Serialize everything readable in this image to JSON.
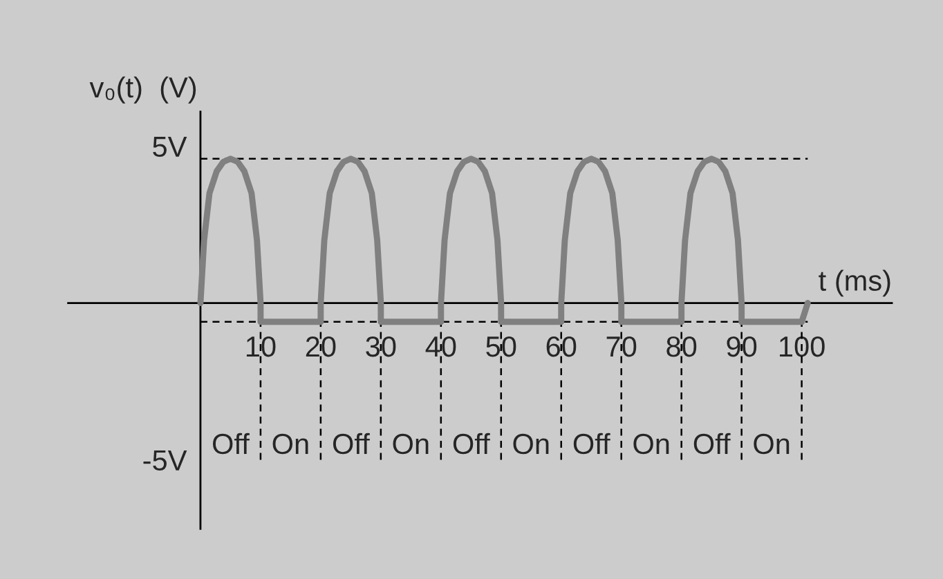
{
  "chart_data": {
    "type": "line",
    "xlabel": "t (ms)",
    "ylabel": "v₀(t)  (V)",
    "x": [
      0,
      0.6,
      1.5,
      2.7,
      3.8,
      5,
      6.2,
      7.3,
      8.5,
      9.4,
      10,
      10,
      20,
      20,
      20.6,
      21.5,
      22.7,
      23.8,
      25,
      26.2,
      27.3,
      28.5,
      29.4,
      30,
      30,
      40,
      40,
      40.6,
      41.5,
      42.7,
      43.8,
      45,
      46.2,
      47.3,
      48.5,
      49.4,
      50,
      50,
      60,
      60,
      60.6,
      61.5,
      62.7,
      63.8,
      65,
      66.2,
      67.3,
      68.5,
      69.4,
      70,
      70,
      80,
      80,
      80.6,
      81.5,
      82.7,
      83.8,
      85,
      86.2,
      87.3,
      88.5,
      89.4,
      90,
      90,
      100,
      101
    ],
    "series": [
      {
        "color": "#808080",
        "values": [
          0,
          2.0,
          3.5,
          4.2,
          4.5,
          4.6,
          4.5,
          4.2,
          3.5,
          2.0,
          0,
          -0.6,
          -0.6,
          0,
          2.0,
          3.5,
          4.2,
          4.5,
          4.6,
          4.5,
          4.2,
          3.5,
          2.0,
          0,
          -0.6,
          -0.6,
          0,
          2.0,
          3.5,
          4.2,
          4.5,
          4.6,
          4.5,
          4.2,
          3.5,
          2.0,
          0,
          -0.6,
          -0.6,
          0,
          2.0,
          3.5,
          4.2,
          4.5,
          4.6,
          4.5,
          4.2,
          3.5,
          2.0,
          0,
          -0.6,
          -0.6,
          0,
          2.0,
          3.5,
          4.2,
          4.5,
          4.6,
          4.5,
          4.2,
          3.5,
          2.0,
          0,
          -0.6,
          -0.6,
          0
        ]
      }
    ],
    "xlim": [
      -22,
      115
    ],
    "ylim": [
      -7.2,
      6.1
    ],
    "xticks": [
      10,
      20,
      30,
      40,
      50,
      60,
      70,
      80,
      90,
      100
    ],
    "yticks": [
      {
        "value": 5,
        "label": "5V"
      },
      {
        "value": -5,
        "label": "-5V"
      }
    ],
    "ref_lines": [
      {
        "axis": "y",
        "value": 4.6,
        "color": "#000000",
        "line_style": "dashed"
      },
      {
        "axis": "y",
        "value": -0.6,
        "color": "#000000",
        "line_style": "dashed"
      },
      {
        "axis": "x",
        "value": 10,
        "color": "#000000",
        "line_style": "dashed"
      },
      {
        "axis": "x",
        "value": 20,
        "color": "#000000",
        "line_style": "dashed"
      },
      {
        "axis": "x",
        "value": 30,
        "color": "#000000",
        "line_style": "dashed"
      },
      {
        "axis": "x",
        "value": 40,
        "color": "#000000",
        "line_style": "dashed"
      },
      {
        "axis": "x",
        "value": 50,
        "color": "#000000",
        "line_style": "dashed"
      },
      {
        "axis": "x",
        "value": 60,
        "color": "#000000",
        "line_style": "dashed"
      },
      {
        "axis": "x",
        "value": 70,
        "color": "#000000",
        "line_style": "dashed"
      },
      {
        "axis": "x",
        "value": 80,
        "color": "#000000",
        "line_style": "dashed"
      },
      {
        "axis": "x",
        "value": 90,
        "color": "#000000",
        "line_style": "dashed"
      },
      {
        "axis": "x",
        "value": 100,
        "color": "#000000",
        "line_style": "dashed"
      }
    ],
    "annotations": [
      "Off",
      "On",
      "Off",
      "On",
      "Off",
      "On",
      "Off",
      "On",
      "Off",
      "On"
    ],
    "line_style": "solid"
  }
}
